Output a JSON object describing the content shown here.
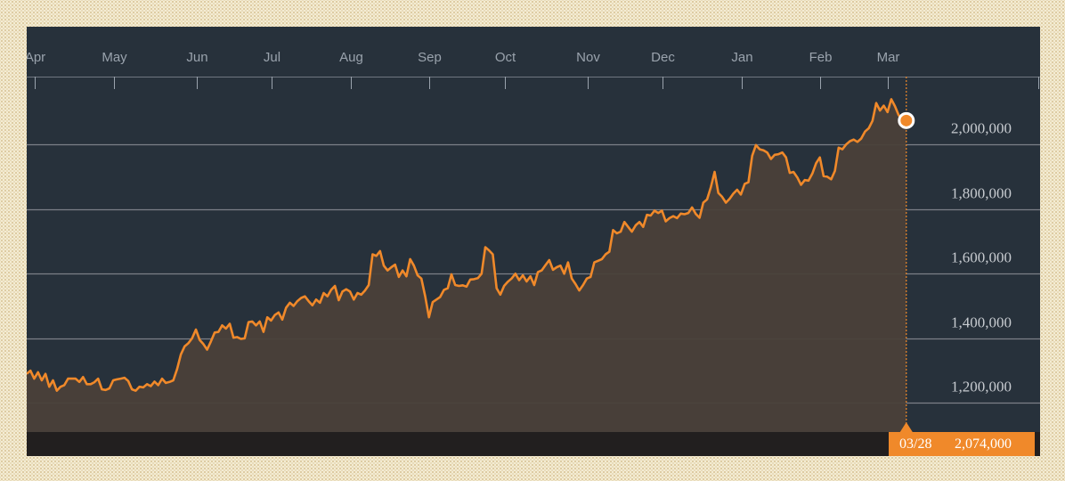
{
  "colors": {
    "page_background": "#f4ecd3",
    "chart_background": "#27313b",
    "footer_bar": "#221f1f",
    "line": "#f0892a",
    "area_fill": "#4a4039",
    "gridline": "#7b8088",
    "tick_text": "#c7cbd0",
    "month_text": "#9aa3ad",
    "readout_background": "#f0892a",
    "marker_fill": "#f0892a",
    "marker_stroke": "#ffffff"
  },
  "readout": {
    "date": "03/28",
    "value": "2,074,000"
  },
  "chart_data": {
    "type": "area",
    "title": "",
    "xlabel": "",
    "ylabel": "",
    "x_axis": {
      "position": "top",
      "labels": [
        "Apr",
        "May",
        "Jun",
        "Jul",
        "Aug",
        "Sep",
        "Oct",
        "Nov",
        "Dec",
        "Jan",
        "Feb",
        "Mar"
      ]
    },
    "y_axis": {
      "position": "right",
      "ticks": [
        1200000,
        1400000,
        1600000,
        1800000,
        2000000
      ],
      "tick_labels": [
        "1,200,000",
        "1,400,000",
        "1,600,000",
        "1,800,000",
        "2,000,000"
      ],
      "ylim": [
        1110000,
        2210000
      ]
    },
    "grid": true,
    "legend": "none",
    "x_index_range": [
      0,
      244
    ],
    "month_start_index": [
      0,
      21,
      43,
      63,
      84,
      105,
      125,
      147,
      167,
      188,
      209,
      227
    ],
    "series": [
      {
        "values": [
          1290000,
          1300000,
          1275000,
          1295000,
          1270000,
          1290000,
          1250000,
          1270000,
          1238000,
          1250000,
          1255000,
          1275000,
          1275000,
          1275000,
          1265000,
          1280000,
          1258000,
          1258000,
          1264000,
          1275000,
          1242000,
          1240000,
          1245000,
          1270000,
          1273000,
          1275000,
          1278000,
          1268000,
          1242000,
          1238000,
          1250000,
          1248000,
          1258000,
          1252000,
          1266000,
          1255000,
          1275000,
          1262000,
          1265000,
          1270000,
          1305000,
          1350000,
          1375000,
          1385000,
          1400000,
          1427000,
          1395000,
          1382000,
          1365000,
          1390000,
          1418000,
          1420000,
          1440000,
          1430000,
          1445000,
          1402000,
          1404000,
          1398000,
          1400000,
          1450000,
          1452000,
          1440000,
          1452000,
          1420000,
          1465000,
          1455000,
          1472000,
          1480000,
          1458000,
          1495000,
          1510000,
          1500000,
          1515000,
          1525000,
          1530000,
          1515000,
          1502000,
          1520000,
          1510000,
          1540000,
          1530000,
          1550000,
          1562000,
          1518000,
          1545000,
          1552000,
          1545000,
          1520000,
          1540000,
          1535000,
          1548000,
          1565000,
          1660000,
          1655000,
          1670000,
          1625000,
          1610000,
          1620000,
          1628000,
          1590000,
          1610000,
          1592000,
          1645000,
          1625000,
          1595000,
          1585000,
          1530000,
          1465000,
          1512000,
          1520000,
          1528000,
          1550000,
          1555000,
          1598000,
          1565000,
          1562000,
          1564000,
          1560000,
          1582000,
          1583000,
          1586000,
          1600000,
          1682000,
          1672000,
          1660000,
          1555000,
          1535000,
          1562000,
          1575000,
          1585000,
          1600000,
          1580000,
          1595000,
          1576000,
          1592000,
          1565000,
          1605000,
          1610000,
          1626000,
          1642000,
          1612000,
          1620000,
          1625000,
          1600000,
          1635000,
          1585000,
          1568000,
          1548000,
          1565000,
          1585000,
          1590000,
          1635000,
          1640000,
          1645000,
          1660000,
          1668000,
          1735000,
          1725000,
          1730000,
          1760000,
          1745000,
          1730000,
          1750000,
          1760000,
          1745000,
          1782000,
          1780000,
          1795000,
          1788000,
          1795000,
          1762000,
          1772000,
          1778000,
          1772000,
          1786000,
          1784000,
          1788000,
          1805000,
          1785000,
          1773000,
          1820000,
          1830000,
          1868000,
          1915000,
          1850000,
          1838000,
          1820000,
          1832000,
          1848000,
          1860000,
          1845000,
          1878000,
          1883000,
          1965000,
          1998000,
          1985000,
          1982000,
          1975000,
          1955000,
          1968000,
          1970000,
          1975000,
          1960000,
          1912000,
          1915000,
          1898000,
          1875000,
          1890000,
          1888000,
          1910000,
          1942000,
          1960000,
          1902000,
          1900000,
          1892000,
          1918000,
          1990000,
          1985000,
          2000000,
          2010000,
          2015000,
          2008000,
          2018000,
          2040000,
          2050000,
          2073000,
          2128000,
          2105000,
          2120000,
          2100000,
          2140000,
          2118000,
          2090000,
          2085000,
          2074000
        ]
      }
    ]
  }
}
